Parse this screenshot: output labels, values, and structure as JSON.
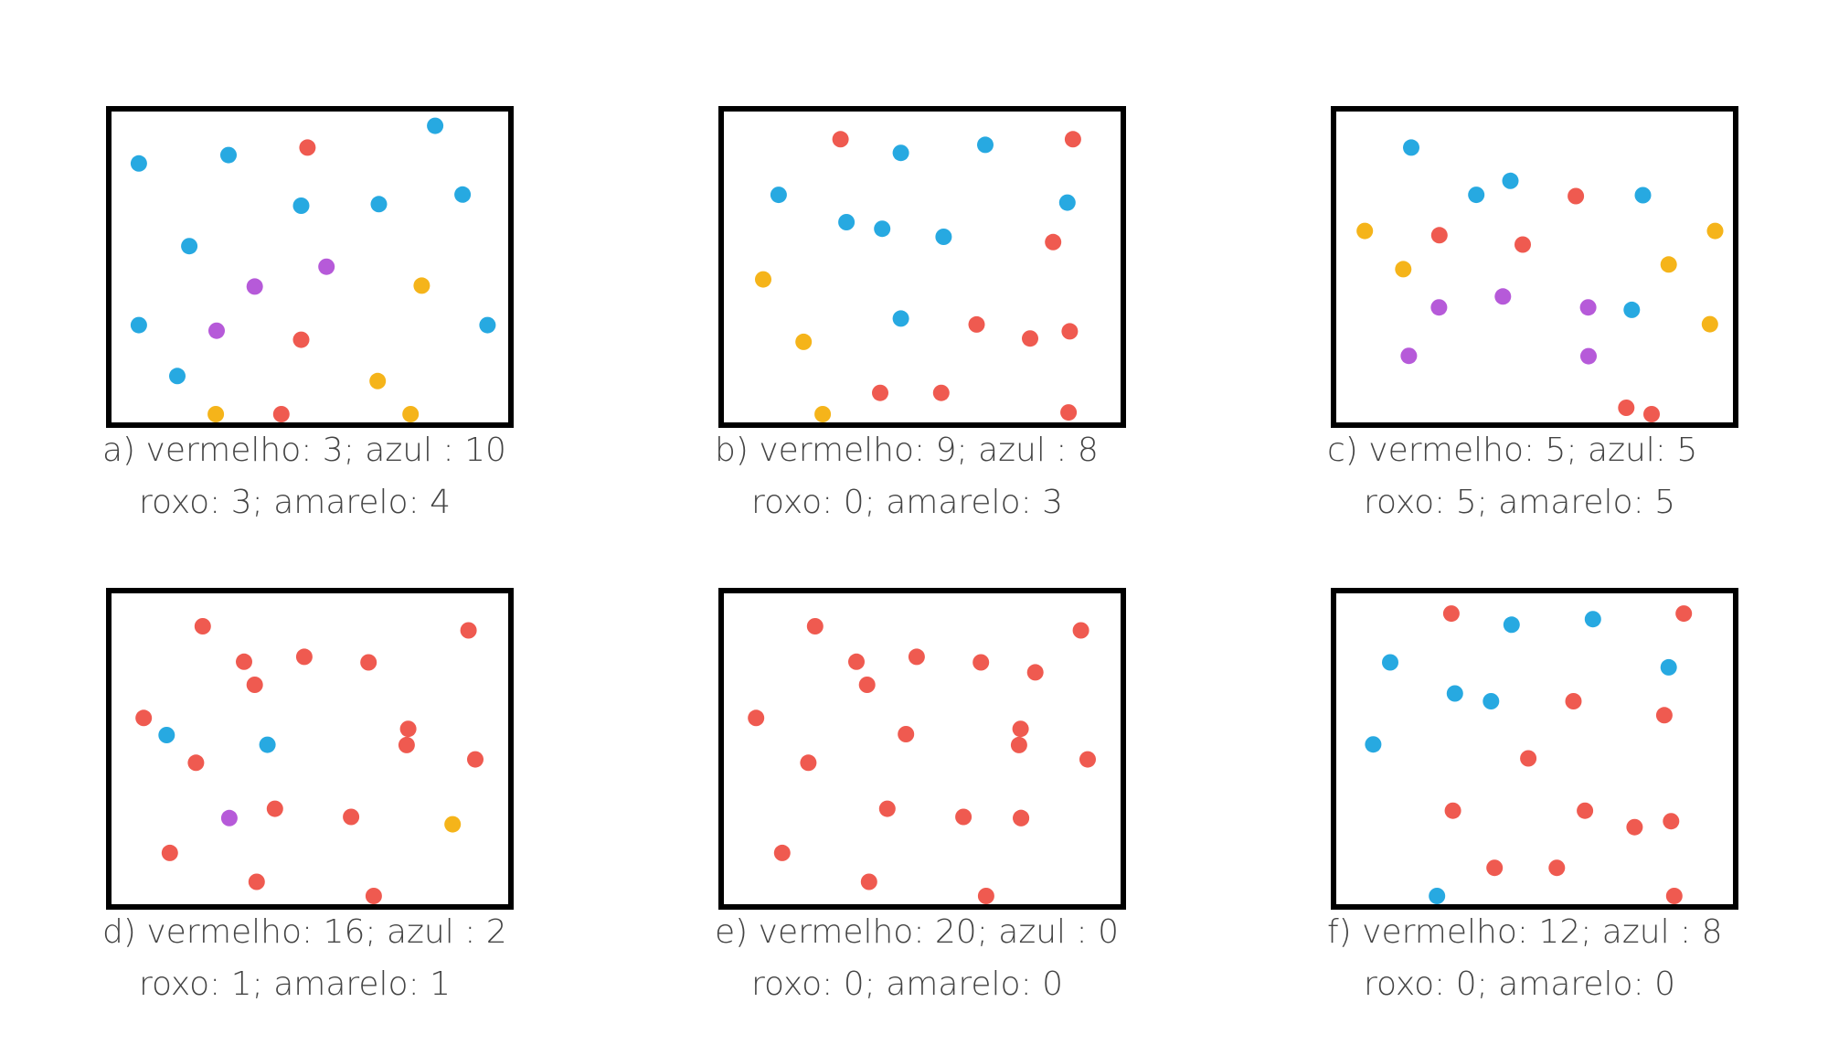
{
  "colors": {
    "vermelho": "#ef5a50",
    "azul": "#27a9e1",
    "roxo": "#b65ad9",
    "amarelo": "#f5b41a"
  },
  "panels": [
    {
      "id": "a",
      "caption_line1": "a) vermelho: 3; azul : 10",
      "caption_line2": "roxo: 3; amarelo: 4",
      "counts": {
        "vermelho": 3,
        "azul": 10,
        "roxo": 3,
        "amarelo": 4
      },
      "dots": [
        [
          "azul",
          0.069,
          0.167
        ],
        [
          "azul",
          0.295,
          0.14
        ],
        [
          "vermelho",
          0.494,
          0.116
        ],
        [
          "azul",
          0.816,
          0.046
        ],
        [
          "azul",
          0.478,
          0.303
        ],
        [
          "azul",
          0.674,
          0.298
        ],
        [
          "azul",
          0.885,
          0.267
        ],
        [
          "azul",
          0.196,
          0.433
        ],
        [
          "roxo",
          0.542,
          0.499
        ],
        [
          "roxo",
          0.361,
          0.563
        ],
        [
          "amarelo",
          0.782,
          0.56
        ],
        [
          "azul",
          0.069,
          0.687
        ],
        [
          "roxo",
          0.265,
          0.705
        ],
        [
          "vermelho",
          0.478,
          0.734
        ],
        [
          "azul",
          0.948,
          0.687
        ],
        [
          "azul",
          0.166,
          0.851
        ],
        [
          "amarelo",
          0.671,
          0.867
        ],
        [
          "vermelho",
          0.428,
          0.976
        ],
        [
          "amarelo",
          0.263,
          1.017
        ],
        [
          "amarelo",
          0.754,
          1.027
        ]
      ]
    },
    {
      "id": "b",
      "caption_line1": "b) vermelho: 9; azul : 8",
      "caption_line2": "roxo: 0; amarelo: 3",
      "counts": {
        "vermelho": 9,
        "azul": 8,
        "roxo": 0,
        "amarelo": 3
      },
      "dots": [
        [
          "vermelho",
          0.294,
          0.089
        ],
        [
          "azul",
          0.446,
          0.133
        ],
        [
          "azul",
          0.659,
          0.107
        ],
        [
          "vermelho",
          0.88,
          0.089
        ],
        [
          "azul",
          0.138,
          0.268
        ],
        [
          "azul",
          0.866,
          0.293
        ],
        [
          "azul",
          0.309,
          0.356
        ],
        [
          "azul",
          0.399,
          0.377
        ],
        [
          "azul",
          0.554,
          0.403
        ],
        [
          "vermelho",
          0.83,
          0.42
        ],
        [
          "amarelo",
          0.099,
          0.54
        ],
        [
          "azul",
          0.446,
          0.666
        ],
        [
          "vermelho",
          0.637,
          0.685
        ],
        [
          "vermelho",
          0.872,
          0.707
        ],
        [
          "vermelho",
          0.772,
          0.73
        ],
        [
          "amarelo",
          0.201,
          0.741
        ],
        [
          "vermelho",
          0.394,
          0.905
        ],
        [
          "vermelho",
          0.548,
          0.905
        ],
        [
          "vermelho",
          0.869,
          0.968
        ],
        [
          "amarelo",
          0.249,
          0.993
        ]
      ]
    },
    {
      "id": "c",
      "caption_line1": "c) vermelho: 5; azul: 5",
      "caption_line2": "roxo: 5; amarelo: 5",
      "counts": {
        "vermelho": 5,
        "azul": 5,
        "roxo": 5,
        "amarelo": 5
      },
      "dots": [
        [
          "azul",
          0.189,
          0.116
        ],
        [
          "azul",
          0.439,
          0.223
        ],
        [
          "vermelho",
          0.604,
          0.272
        ],
        [
          "azul",
          0.773,
          0.269
        ],
        [
          "azul",
          0.353,
          0.268
        ],
        [
          "amarelo",
          0.072,
          0.384
        ],
        [
          "vermelho",
          0.26,
          0.398
        ],
        [
          "vermelho",
          0.47,
          0.428
        ],
        [
          "amarelo",
          0.955,
          0.384
        ],
        [
          "amarelo",
          0.169,
          0.507
        ],
        [
          "amarelo",
          0.838,
          0.492
        ],
        [
          "roxo",
          0.259,
          0.63
        ],
        [
          "roxo",
          0.42,
          0.595
        ],
        [
          "roxo",
          0.635,
          0.63
        ],
        [
          "azul",
          0.745,
          0.638
        ],
        [
          "amarelo",
          0.942,
          0.684
        ],
        [
          "roxo",
          0.183,
          0.786
        ],
        [
          "roxo",
          0.636,
          0.787
        ],
        [
          "vermelho",
          0.731,
          0.953
        ],
        [
          "vermelho",
          0.795,
          0.993
        ]
      ]
    },
    {
      "id": "d",
      "caption_line1": "d) vermelho: 16; azul : 2",
      "caption_line2": "roxo: 1; amarelo: 1",
      "counts": {
        "vermelho": 16,
        "azul": 2,
        "roxo": 1,
        "amarelo": 1
      },
      "dots": [
        [
          "vermelho",
          0.23,
          0.106
        ],
        [
          "vermelho",
          0.9,
          0.119
        ],
        [
          "vermelho",
          0.334,
          0.22
        ],
        [
          "vermelho",
          0.486,
          0.204
        ],
        [
          "vermelho",
          0.648,
          0.222
        ],
        [
          "vermelho",
          0.361,
          0.294
        ],
        [
          "vermelho",
          0.081,
          0.401
        ],
        [
          "azul",
          0.139,
          0.456
        ],
        [
          "vermelho",
          0.748,
          0.436
        ],
        [
          "vermelho",
          0.744,
          0.488
        ],
        [
          "azul",
          0.393,
          0.487
        ],
        [
          "vermelho",
          0.213,
          0.545
        ],
        [
          "vermelho",
          0.917,
          0.534
        ],
        [
          "vermelho",
          0.412,
          0.693
        ],
        [
          "vermelho",
          0.604,
          0.719
        ],
        [
          "roxo",
          0.297,
          0.723
        ],
        [
          "amarelo",
          0.86,
          0.743
        ],
        [
          "vermelho",
          0.147,
          0.835
        ],
        [
          "vermelho",
          0.366,
          0.928
        ],
        [
          "vermelho",
          0.661,
          0.981
        ]
      ]
    },
    {
      "id": "e",
      "caption_line1": "e) vermelho: 20; azul : 0",
      "caption_line2": "roxo: 0; amarelo: 0",
      "counts": {
        "vermelho": 20,
        "azul": 0,
        "roxo": 0,
        "amarelo": 0
      },
      "dots": [
        [
          "vermelho",
          0.23,
          0.106
        ],
        [
          "vermelho",
          0.9,
          0.119
        ],
        [
          "vermelho",
          0.334,
          0.22
        ],
        [
          "vermelho",
          0.486,
          0.204
        ],
        [
          "vermelho",
          0.648,
          0.222
        ],
        [
          "vermelho",
          0.361,
          0.294
        ],
        [
          "vermelho",
          0.081,
          0.401
        ],
        [
          "vermelho",
          0.785,
          0.254
        ],
        [
          "vermelho",
          0.748,
          0.436
        ],
        [
          "vermelho",
          0.744,
          0.488
        ],
        [
          "vermelho",
          0.459,
          0.453
        ],
        [
          "vermelho",
          0.213,
          0.545
        ],
        [
          "vermelho",
          0.917,
          0.534
        ],
        [
          "vermelho",
          0.412,
          0.693
        ],
        [
          "vermelho",
          0.604,
          0.719
        ],
        [
          "vermelho",
          0.749,
          0.723
        ],
        [
          "vermelho",
          0.147,
          0.835
        ],
        [
          "vermelho",
          0.366,
          0.928
        ],
        [
          "vermelho",
          0.661,
          0.981
        ],
        [
          "vermelho",
          0.749,
          0.723
        ]
      ]
    },
    {
      "id": "f",
      "caption_line1": "f) vermelho: 12; azul : 8",
      "caption_line2": "roxo: 0; amarelo: 0",
      "counts": {
        "vermelho": 12,
        "azul": 8,
        "roxo": 0,
        "amarelo": 0
      },
      "dots": [
        [
          "vermelho",
          0.29,
          0.065
        ],
        [
          "azul",
          0.442,
          0.101
        ],
        [
          "azul",
          0.647,
          0.083
        ],
        [
          "vermelho",
          0.876,
          0.065
        ],
        [
          "azul",
          0.136,
          0.222
        ],
        [
          "azul",
          0.838,
          0.238
        ],
        [
          "azul",
          0.299,
          0.322
        ],
        [
          "azul",
          0.39,
          0.347
        ],
        [
          "vermelho",
          0.598,
          0.347
        ],
        [
          "vermelho",
          0.827,
          0.392
        ],
        [
          "azul",
          0.093,
          0.486
        ],
        [
          "vermelho",
          0.484,
          0.531
        ],
        [
          "vermelho",
          0.294,
          0.699
        ],
        [
          "vermelho",
          0.627,
          0.699
        ],
        [
          "vermelho",
          0.752,
          0.752
        ],
        [
          "vermelho",
          0.844,
          0.733
        ],
        [
          "vermelho",
          0.399,
          0.883
        ],
        [
          "vermelho",
          0.556,
          0.883
        ],
        [
          "vermelho",
          0.852,
          0.992
        ],
        [
          "azul",
          0.254,
          1.015
        ]
      ]
    }
  ]
}
